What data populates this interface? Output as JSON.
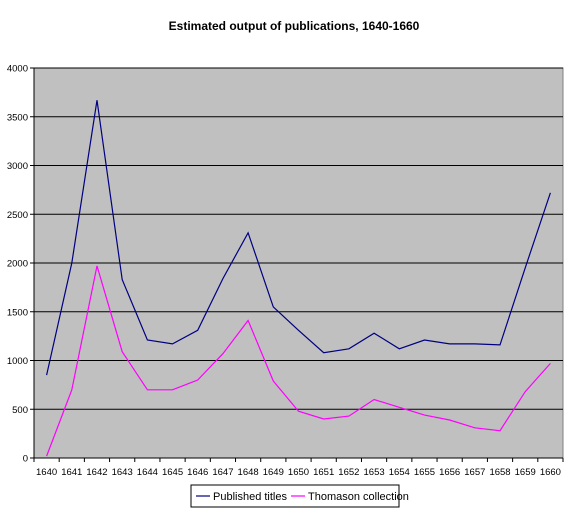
{
  "chart_data": {
    "type": "line",
    "title": "Estimated output of publications, 1640-1660",
    "xlabel": "",
    "ylabel": "",
    "categories": [
      "1640",
      "1641",
      "1642",
      "1643",
      "1644",
      "1645",
      "1646",
      "1647",
      "1648",
      "1649",
      "1650",
      "1651",
      "1652",
      "1653",
      "1654",
      "1655",
      "1656",
      "1657",
      "1658",
      "1659",
      "1660"
    ],
    "x_tick_labels": [
      "1640",
      "1641",
      "1642",
      "1643",
      "1644",
      "1645",
      "1646",
      "1647",
      "1648",
      "1649",
      "1650",
      "1651",
      "1652",
      "1653",
      "1654",
      "1655",
      "1656",
      "1657",
      "1658",
      "1659",
      "1660"
    ],
    "y_tick_labels": [
      "0",
      "500",
      "1000",
      "1500",
      "2000",
      "2500",
      "3000",
      "3500",
      "4000"
    ],
    "ylim": [
      0,
      4000
    ],
    "y_step": 500,
    "grid": true,
    "legend_position": "bottom",
    "plot_background": "#c0c0c0",
    "series": [
      {
        "name": "Published titles",
        "color": "#000080",
        "values": [
          850,
          2000,
          3670,
          1830,
          1210,
          1170,
          1310,
          1840,
          2310,
          1550,
          1310,
          1080,
          1120,
          1280,
          1120,
          1210,
          1170,
          1170,
          1160,
          1950,
          2720
        ]
      },
      {
        "name": "Thomason collection",
        "color": "#ff00ff",
        "values": [
          20,
          700,
          1970,
          1090,
          700,
          700,
          800,
          1070,
          1410,
          790,
          480,
          400,
          430,
          600,
          520,
          440,
          390,
          310,
          280,
          680,
          970
        ]
      }
    ]
  }
}
